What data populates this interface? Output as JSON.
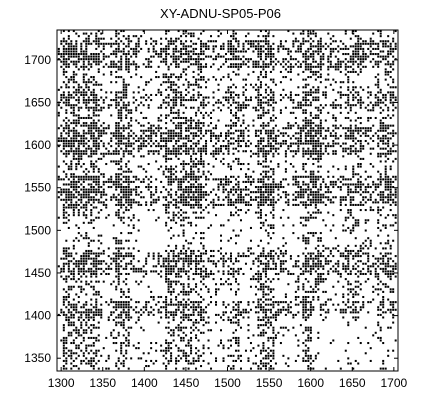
{
  "chart_data": {
    "type": "heatmap",
    "title": "XY-ADNU-SP05-P06",
    "xlabel": "",
    "ylabel": "",
    "xlim": [
      1295,
      1705
    ],
    "ylim": [
      1335,
      1735
    ],
    "x_ticks": [
      1300,
      1350,
      1400,
      1450,
      1500,
      1550,
      1600,
      1650,
      1700
    ],
    "y_ticks": [
      1350,
      1400,
      1450,
      1500,
      1550,
      1600,
      1650,
      1700
    ],
    "x_tick_labels": [
      "1300",
      "1350",
      "1400",
      "1450",
      "1500",
      "1550",
      "1600",
      "1650",
      "1700"
    ],
    "y_tick_labels": [
      "1350",
      "1400",
      "1450",
      "1500",
      "1550",
      "1600",
      "1650",
      "1700"
    ],
    "colormap": [
      "#ffffff",
      "#000000"
    ],
    "grid": false,
    "description_of_marks": "dense binary (black/white) residue-pair contact pattern; dark vertical bands near x 1300-1350, 1365-1380, 1425-1470, 1535-1555, 1590-1610; dark horizontal bands near y 1445-1470, 1530-1560, 1590-1620, 1690-1720; sparse region near x 1600-1700, y 1340-1400"
  },
  "colors": {
    "foreground": "#000000",
    "background": "#ffffff"
  }
}
